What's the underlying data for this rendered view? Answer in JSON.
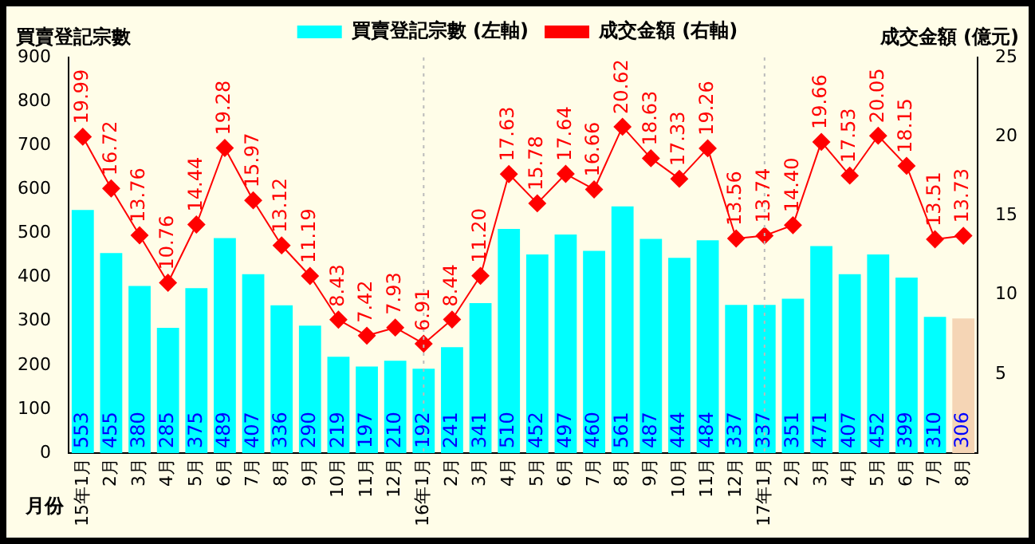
{
  "chart_data": {
    "type": "bar",
    "ylabel": "買賣登記宗數",
    "y2label": "成交金額 (億元)",
    "xlabel": "月份",
    "categories": [
      "15年1月",
      "2月",
      "3月",
      "4月",
      "5月",
      "6月",
      "7月",
      "8月",
      "9月",
      "10月",
      "11月",
      "12月",
      "16年1月",
      "2月",
      "3月",
      "4月",
      "5月",
      "6月",
      "7月",
      "8月",
      "9月",
      "10月",
      "11月",
      "12月",
      "17年1月",
      "2月",
      "3月",
      "4月",
      "5月",
      "6月",
      "7月",
      "8月"
    ],
    "series": [
      {
        "name": "買賣登記宗數 (左軸)",
        "color": "#00ffff",
        "colors": [
          "#00ffff",
          "#00ffff",
          "#00ffff",
          "#00ffff",
          "#00ffff",
          "#00ffff",
          "#00ffff",
          "#00ffff",
          "#00ffff",
          "#00ffff",
          "#00ffff",
          "#00ffff",
          "#00ffff",
          "#00ffff",
          "#00ffff",
          "#00ffff",
          "#00ffff",
          "#00ffff",
          "#00ffff",
          "#00ffff",
          "#00ffff",
          "#00ffff",
          "#00ffff",
          "#00ffff",
          "#00ffff",
          "#00ffff",
          "#00ffff",
          "#00ffff",
          "#00ffff",
          "#00ffff",
          "#00ffff",
          "#f5d5b5"
        ],
        "values": [
          553,
          455,
          380,
          285,
          375,
          489,
          407,
          336,
          290,
          219,
          197,
          210,
          192,
          241,
          341,
          510,
          452,
          497,
          460,
          561,
          487,
          444,
          484,
          337,
          337,
          351,
          471,
          407,
          452,
          399,
          310,
          306
        ]
      },
      {
        "name": "成交金額 (右軸)",
        "type": "line",
        "axis": "y2",
        "color": "#ff0000",
        "values": [
          19.99,
          16.72,
          13.76,
          10.76,
          14.44,
          19.28,
          15.97,
          13.12,
          11.19,
          8.43,
          7.42,
          7.93,
          6.91,
          8.44,
          11.2,
          17.63,
          15.78,
          17.64,
          16.66,
          20.62,
          18.63,
          17.33,
          19.26,
          13.56,
          13.74,
          14.4,
          19.66,
          17.53,
          20.05,
          18.15,
          13.51,
          13.73
        ],
        "value_labels": [
          "19.99",
          "16.72",
          "13.76",
          "10.76",
          "14.44",
          "19.28",
          "15.97",
          "13.12",
          "11.19",
          "8.43",
          "7.42",
          "7.93",
          "6.91",
          "8.44",
          "11.20",
          "17.63",
          "15.78",
          "17.64",
          "16.66",
          "20.62",
          "18.63",
          "17.33",
          "19.26",
          "13.56",
          "13.74",
          "14.40",
          "19.66",
          "17.53",
          "20.05",
          "18.15",
          "13.51",
          "13.73"
        ]
      }
    ],
    "ylim": [
      0,
      900
    ],
    "yticks": [
      0,
      100,
      200,
      300,
      400,
      500,
      600,
      700,
      800,
      900
    ],
    "y2lim": [
      0,
      25
    ],
    "y2ticks": [
      5,
      10,
      15,
      20,
      25
    ],
    "ref_lines": [
      {
        "axis": "x",
        "value": "16年1月",
        "color": "#bbbbbb",
        "line_style": "dotted"
      },
      {
        "axis": "x",
        "value": "17年1月",
        "color": "#bbbbbb",
        "line_style": "dotted"
      }
    ],
    "data_labels": true,
    "legend": "top",
    "marker": "diamond",
    "line_style": "solid",
    "grid": false
  }
}
